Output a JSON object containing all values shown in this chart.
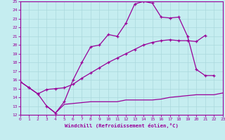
{
  "xlabel": "Windchill (Refroidissement éolien,°C)",
  "xlim": [
    0,
    23
  ],
  "ylim": [
    12,
    25
  ],
  "yticks": [
    12,
    13,
    14,
    15,
    16,
    17,
    18,
    19,
    20,
    21,
    22,
    23,
    24,
    25
  ],
  "xticks": [
    0,
    1,
    2,
    3,
    4,
    5,
    6,
    7,
    8,
    9,
    10,
    11,
    12,
    13,
    14,
    15,
    16,
    17,
    18,
    19,
    20,
    21,
    22,
    23
  ],
  "bg_color": "#c5edf0",
  "line_color": "#990099",
  "grid_color": "#aad8dc",
  "line1_x": [
    0,
    1,
    2,
    3,
    4,
    5,
    6,
    7,
    8,
    9,
    10,
    11,
    12,
    13,
    14,
    15,
    16,
    17,
    18,
    19,
    20,
    21,
    22
  ],
  "line1_y": [
    15.8,
    15.1,
    14.4,
    13.0,
    12.2,
    13.5,
    16.0,
    18.0,
    19.8,
    20.0,
    21.2,
    21.0,
    22.5,
    24.7,
    25.0,
    24.8,
    23.2,
    23.1,
    23.2,
    21.0,
    17.2,
    16.5,
    16.5
  ],
  "line2_x": [
    0,
    1,
    2,
    3,
    4,
    5,
    6,
    7,
    8,
    9,
    10,
    11,
    12,
    13,
    14,
    15,
    16,
    17,
    18,
    19,
    20,
    21
  ],
  "line2_y": [
    15.8,
    15.1,
    14.4,
    14.9,
    15.0,
    15.1,
    15.5,
    16.2,
    16.8,
    17.4,
    18.0,
    18.5,
    19.0,
    19.5,
    20.0,
    20.3,
    20.5,
    20.6,
    20.5,
    20.5,
    20.4,
    21.1
  ],
  "line3_x": [
    3,
    4,
    5,
    6,
    7,
    8,
    9,
    10,
    11,
    12,
    13,
    14,
    15,
    16,
    17,
    18,
    19,
    20,
    21,
    22,
    23
  ],
  "line3_y": [
    13.0,
    12.2,
    13.2,
    13.3,
    13.4,
    13.5,
    13.5,
    13.5,
    13.5,
    13.7,
    13.7,
    13.7,
    13.7,
    13.8,
    14.0,
    14.1,
    14.2,
    14.3,
    14.3,
    14.3,
    14.5
  ]
}
